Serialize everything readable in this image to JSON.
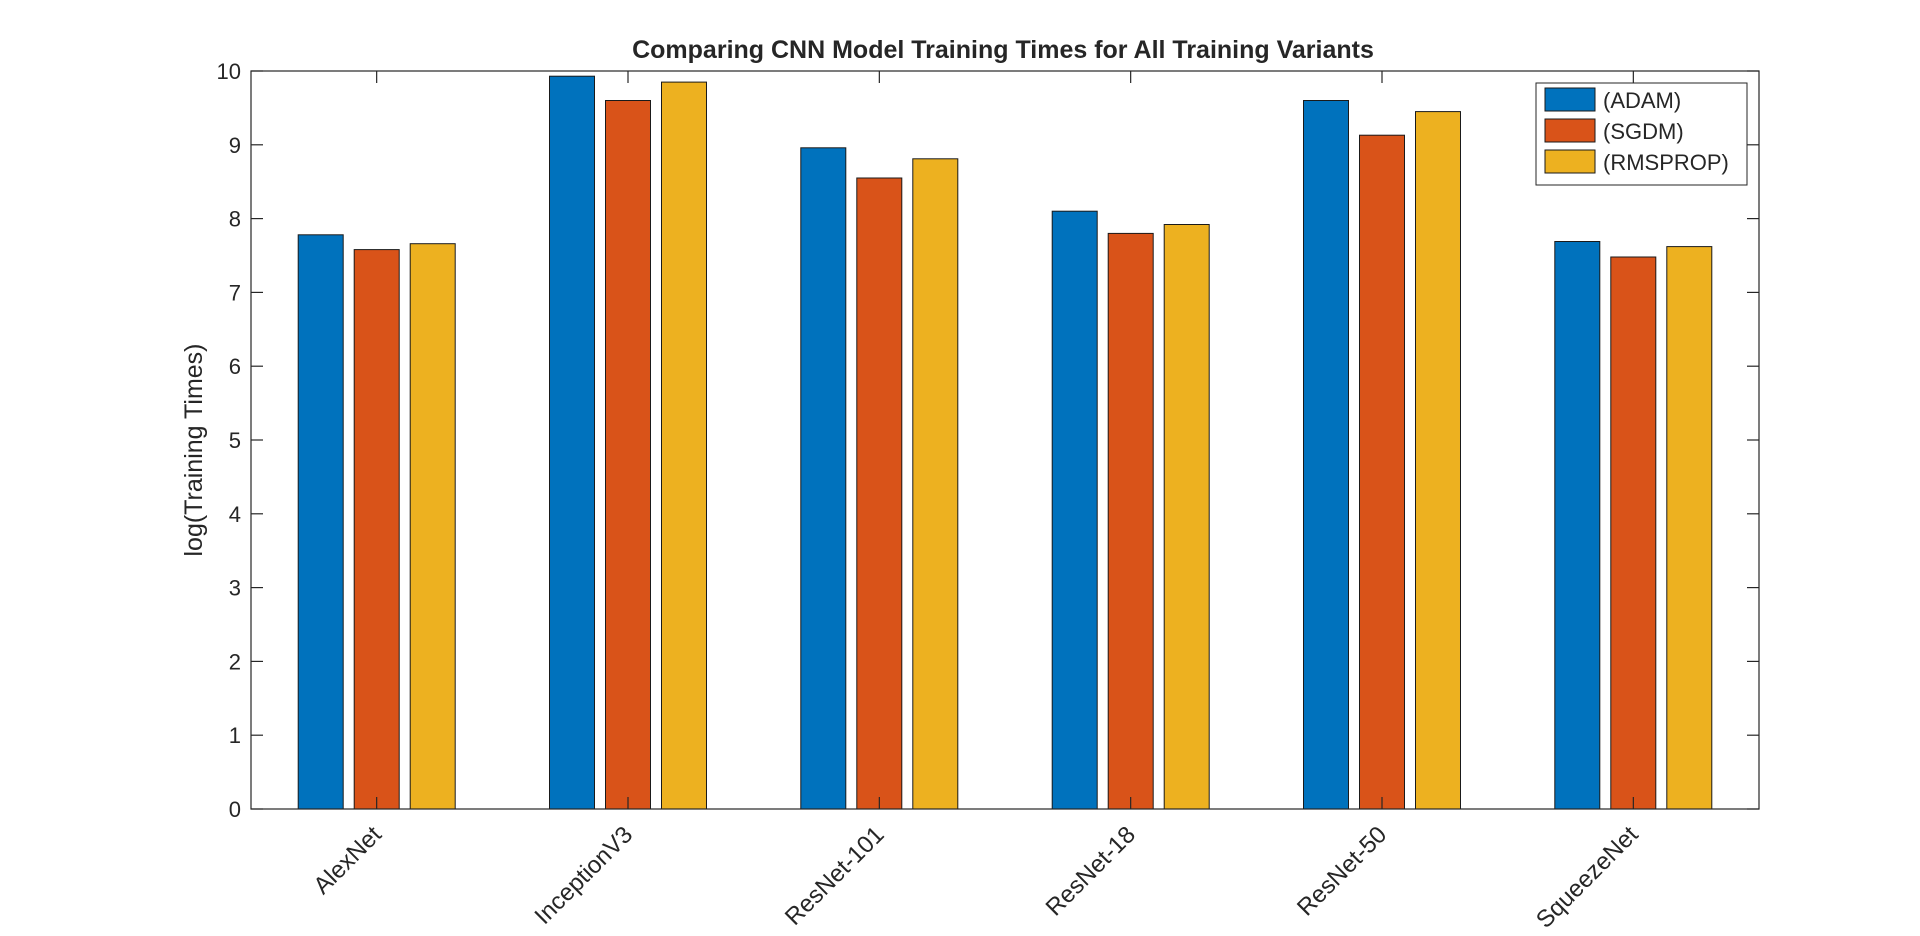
{
  "chart_data": {
    "type": "bar",
    "title": "Comparing CNN Model Training Times for All Training Variants",
    "xlabel": "",
    "ylabel": "log(Training Times)",
    "ylim": [
      0,
      10
    ],
    "yticks": [
      "0",
      "1",
      "2",
      "3",
      "4",
      "5",
      "6",
      "7",
      "8",
      "9",
      "10"
    ],
    "categories": [
      "AlexNet",
      "InceptionV3",
      "ResNet-101",
      "ResNet-18",
      "ResNet-50",
      "SqueezeNet"
    ],
    "series": [
      {
        "name": "(ADAM)",
        "color": "#0072BD",
        "values": [
          7.78,
          9.93,
          8.96,
          8.1,
          9.6,
          7.69
        ]
      },
      {
        "name": "(SGDM)",
        "color": "#D95319",
        "values": [
          7.58,
          9.6,
          8.55,
          7.8,
          9.13,
          7.48
        ]
      },
      {
        "name": "(RMSPROP)",
        "color": "#EDB120",
        "values": [
          7.66,
          9.85,
          8.81,
          7.92,
          9.45,
          7.62
        ]
      }
    ],
    "legend_position": "top-right",
    "grid": false
  }
}
